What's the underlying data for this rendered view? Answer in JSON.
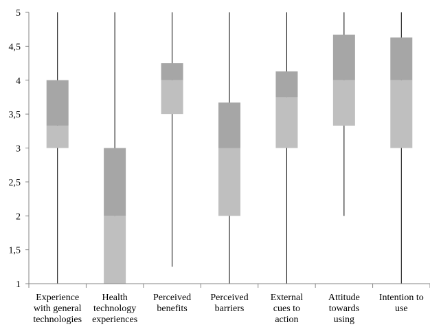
{
  "chart_data": {
    "type": "box",
    "title": "",
    "xlabel": "",
    "ylabel": "",
    "ylim": [
      1,
      5
    ],
    "yticks": [
      "1",
      "1,5",
      "2",
      "2,5",
      "3",
      "3,5",
      "4",
      "4,5",
      "5"
    ],
    "ytick_values": [
      1,
      1.5,
      2,
      2.5,
      3,
      3.5,
      4,
      4.5,
      5
    ],
    "grid": false,
    "legend": "none",
    "colors": {
      "lower_box": "#bfbfbf",
      "upper_box": "#a6a6a6",
      "whisker": "#000000",
      "axis": "#868686"
    },
    "categories": [
      {
        "label_lines": [
          "Experience",
          "with general",
          "technologies"
        ],
        "min": 1,
        "q1": 3,
        "median": 3.33,
        "q3": 4,
        "max": 5
      },
      {
        "label_lines": [
          "Health",
          "technology",
          "experiences"
        ],
        "min": 1,
        "q1": 1,
        "median": 2,
        "q3": 3,
        "max": 5
      },
      {
        "label_lines": [
          "Perceived",
          "benefits"
        ],
        "min": 1.25,
        "q1": 3.5,
        "median": 4,
        "q3": 4.25,
        "max": 5
      },
      {
        "label_lines": [
          "Perceived",
          "barriers"
        ],
        "min": 1,
        "q1": 2,
        "median": 3,
        "q3": 3.67,
        "max": 5
      },
      {
        "label_lines": [
          "External",
          "cues to",
          "action"
        ],
        "min": 1,
        "q1": 3,
        "median": 3.75,
        "q3": 4.13,
        "max": 5
      },
      {
        "label_lines": [
          "Attitude",
          "towards",
          "using"
        ],
        "min": 2,
        "q1": 3.33,
        "median": 4,
        "q3": 4.67,
        "max": 5
      },
      {
        "label_lines": [
          "Intention to",
          "use"
        ],
        "min": 1,
        "q1": 3,
        "median": 4,
        "q3": 4.63,
        "max": 5
      }
    ]
  }
}
